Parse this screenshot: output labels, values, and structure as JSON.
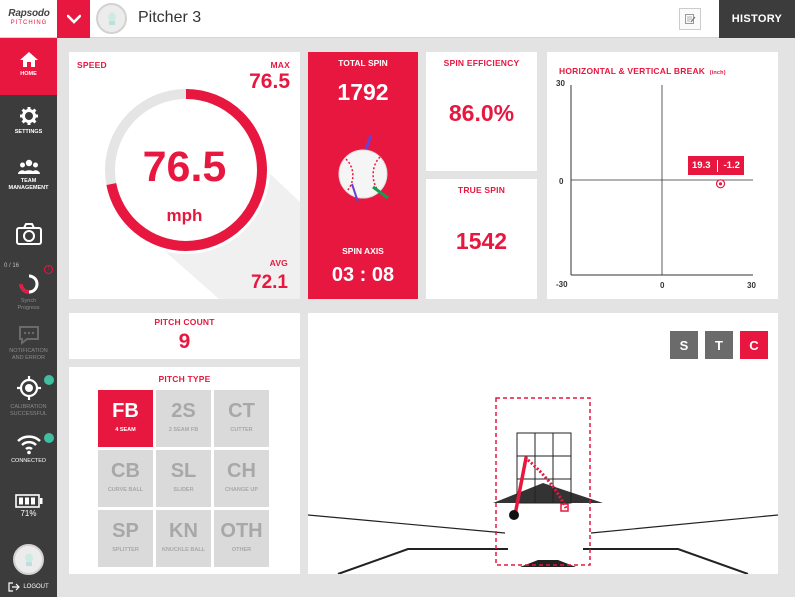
{
  "topbar": {
    "logo_line1": "Rapsodo",
    "logo_line2": "PITCHING",
    "pitcher_name": "Pitcher 3",
    "history_label": "HISTORY"
  },
  "sidebar": {
    "home": "HOME",
    "settings": "SETTINGS",
    "team_line1": "TEAM",
    "team_line2": "MANAGEMENT",
    "sync_count": "0 / 16",
    "sync_badge": "!",
    "sync_line1": "Synch",
    "sync_line2": "Progress",
    "notif_line1": "NOTIFICATION",
    "notif_line2": "AND ERROR",
    "calib_line1": "CALIBRATION",
    "calib_line2": "SUCCESSFUL",
    "connected": "CONNECTED",
    "battery": "71%",
    "logout": "LOGOUT"
  },
  "speed": {
    "label": "SPEED",
    "max_label": "MAX",
    "max_value": "76.5",
    "value": "76.5",
    "unit": "mph",
    "avg_label": "AVG",
    "avg_value": "72.1",
    "gauge_fraction": 0.72
  },
  "spin": {
    "total_label": "TOTAL SPIN",
    "total_value": "1792",
    "axis_label": "SPIN AXIS",
    "axis_value": "03 : 08"
  },
  "spin_efficiency": {
    "label": "SPIN EFFICIENCY",
    "value": "86.0%"
  },
  "true_spin": {
    "label": "TRUE SPIN",
    "value": "1542"
  },
  "break_chart": {
    "title": "HORIZONTAL & VERTICAL BREAK",
    "unit": "(inch)",
    "y_top": "30",
    "y_mid": "0",
    "y_bottom": "-30",
    "x_mid": "0",
    "x_right": "30",
    "point_h_label": "19.3",
    "point_v_label": "-1.2",
    "point": {
      "h": 19.3,
      "v": -1.2
    },
    "range": [
      -30,
      30
    ]
  },
  "pitch_count": {
    "label": "PITCH COUNT",
    "value": "9"
  },
  "pitch_type": {
    "label": "PITCH TYPE",
    "items": [
      {
        "code": "FB",
        "name": "4 SEAM"
      },
      {
        "code": "2S",
        "name": "2 SEAM FB"
      },
      {
        "code": "CT",
        "name": "CUTTER"
      },
      {
        "code": "CB",
        "name": "CURVE BALL"
      },
      {
        "code": "SL",
        "name": "SLIDER"
      },
      {
        "code": "CH",
        "name": "CHANGE UP"
      },
      {
        "code": "SP",
        "name": "SPLITTER"
      },
      {
        "code": "KN",
        "name": "KNUCKLE BALL"
      },
      {
        "code": "OTH",
        "name": "OTHER"
      }
    ],
    "selected": "FB"
  },
  "view_buttons": {
    "s": "S",
    "t": "T",
    "c": "C",
    "selected": "C"
  },
  "colors": {
    "accent": "#e8173f",
    "sidebar": "#3c3c3c",
    "inactive": "#6b6b6b"
  }
}
